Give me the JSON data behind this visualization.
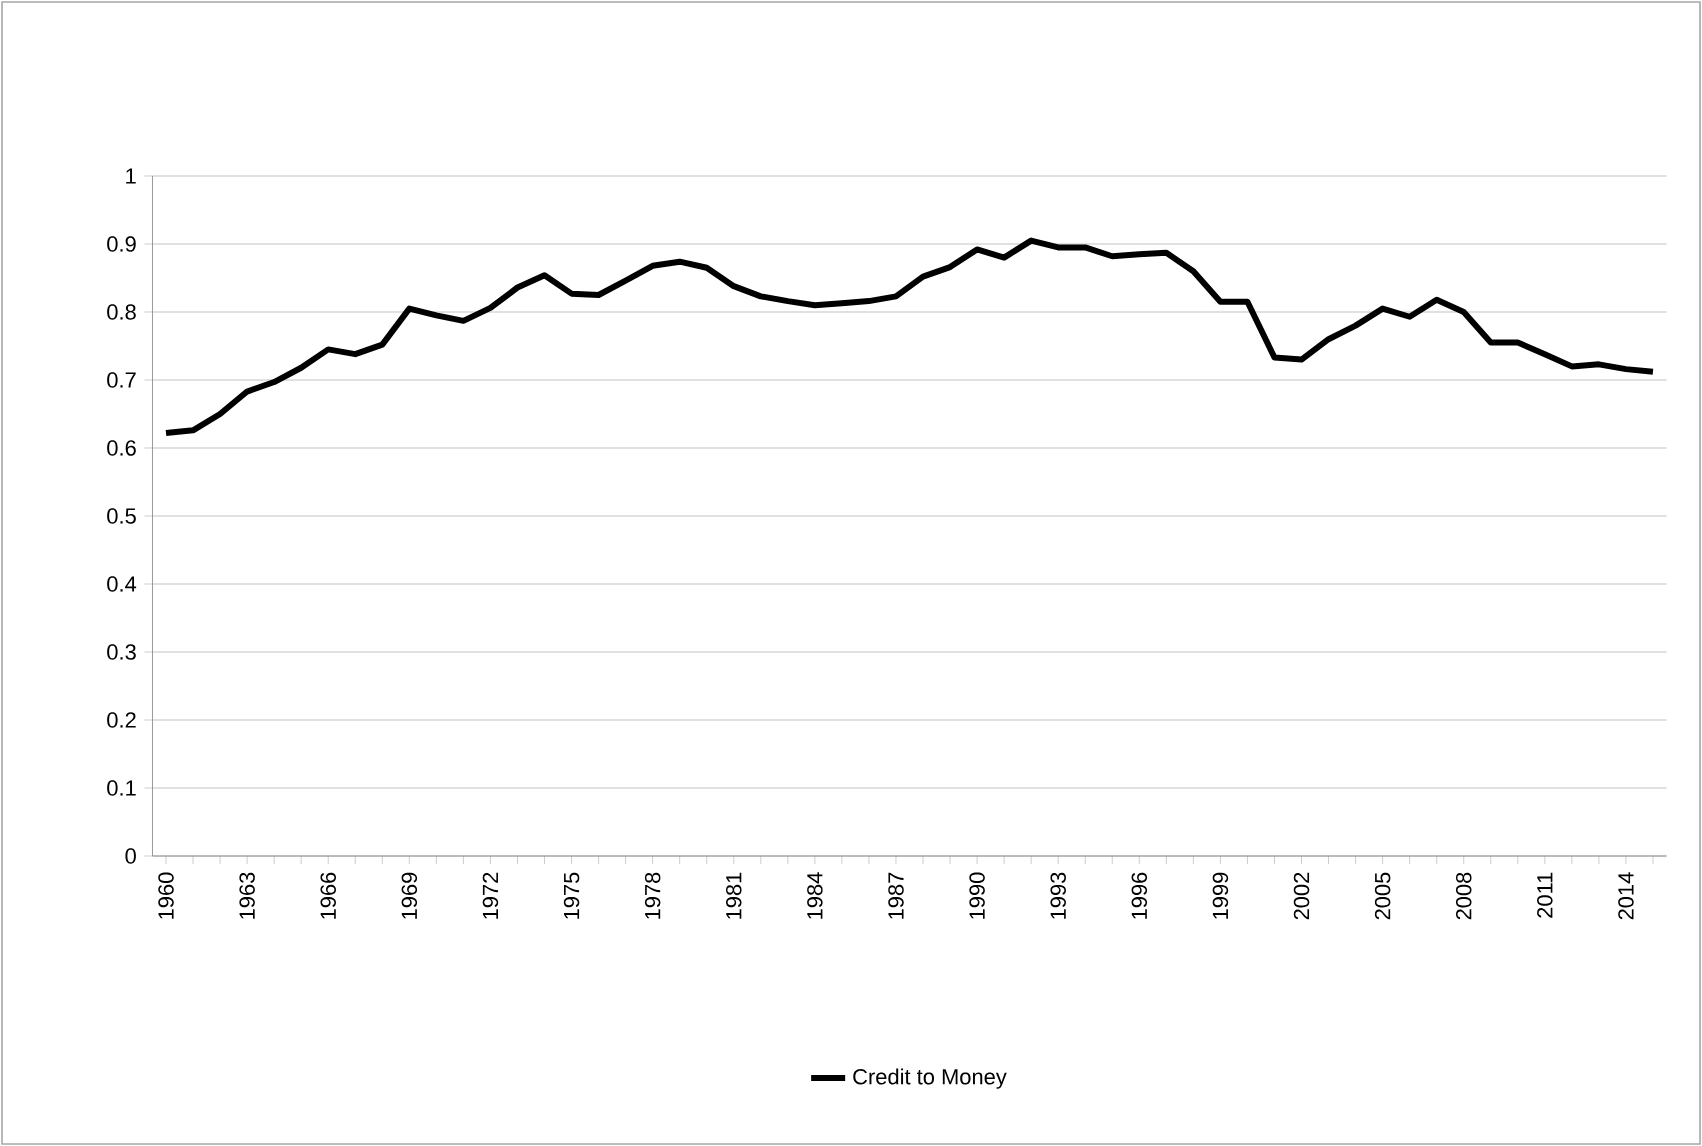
{
  "chart_data": {
    "type": "line",
    "categories": [
      "1960",
      null,
      null,
      "1963",
      null,
      null,
      "1966",
      null,
      null,
      "1969",
      null,
      null,
      "1972",
      null,
      null,
      "1975",
      null,
      null,
      "1978",
      null,
      null,
      "1981",
      null,
      null,
      "1984",
      null,
      null,
      "1987",
      null,
      null,
      "1990",
      null,
      null,
      "1993",
      null,
      null,
      "1996",
      null,
      null,
      "1999",
      null,
      null,
      "2002",
      null,
      null,
      "2005",
      null,
      null,
      "2008",
      null,
      null,
      "2011",
      null,
      null,
      "2014",
      null
    ],
    "series": [
      {
        "name": "Credit to Money",
        "color": "#000000",
        "values": [
          0.622,
          0.626,
          0.65,
          0.683,
          0.697,
          0.718,
          0.745,
          0.738,
          0.752,
          0.805,
          0.795,
          0.787,
          0.806,
          0.836,
          0.854,
          0.827,
          0.825,
          0.846,
          0.868,
          0.874,
          0.865,
          0.838,
          0.823,
          0.816,
          0.81,
          0.813,
          0.816,
          0.823,
          0.852,
          0.866,
          0.892,
          0.88,
          0.905,
          0.895,
          0.895,
          0.882,
          0.885,
          0.887,
          0.86,
          0.815,
          0.815,
          0.733,
          0.73,
          0.76,
          0.78,
          0.805,
          0.793,
          0.818,
          0.8,
          0.755,
          0.755,
          0.738,
          0.72,
          0.723,
          0.716,
          0.712
        ]
      }
    ],
    "ylim": [
      0,
      1
    ],
    "yticks": [
      0,
      0.1,
      0.2,
      0.3,
      0.4,
      0.5,
      0.6,
      0.7,
      0.8,
      0.9,
      1
    ],
    "grid": "y",
    "legend": "bottom",
    "marker": "none",
    "line_style": "solid"
  }
}
